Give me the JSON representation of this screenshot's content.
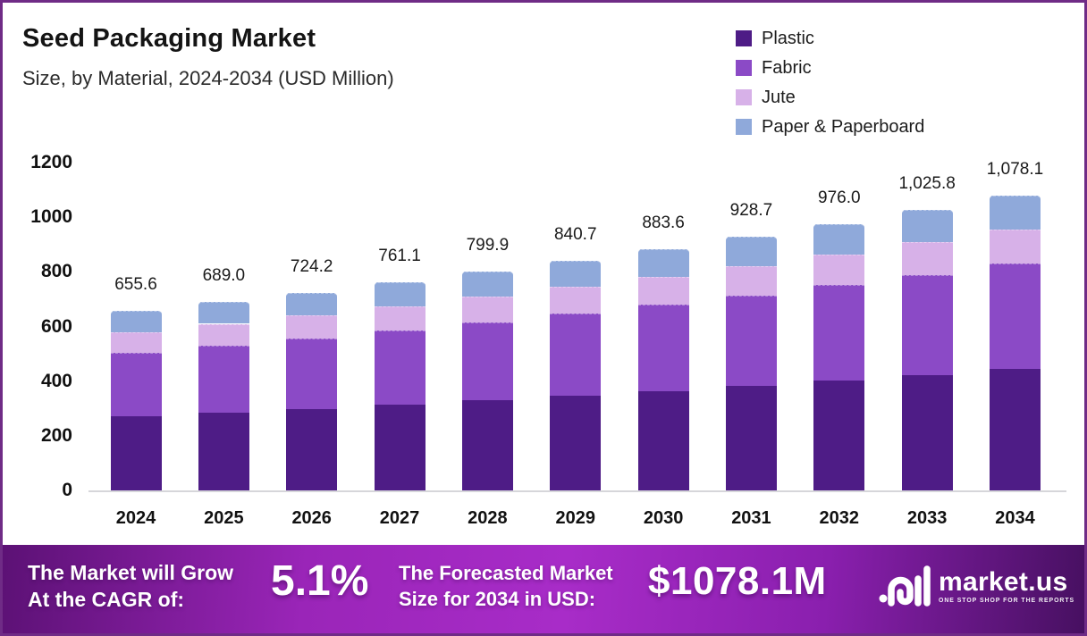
{
  "header": {
    "title": "Seed Packaging Market",
    "subtitle": "Size, by Material, 2024-2034 (USD Million)"
  },
  "chart_data": {
    "type": "bar",
    "stacked": true,
    "title": "Seed Packaging Market Size, by Material, 2024-2034 (USD Million)",
    "xlabel": "",
    "ylabel": "",
    "ylim": [
      0,
      1200
    ],
    "yticks": [
      0,
      200,
      400,
      600,
      800,
      1000,
      1200
    ],
    "grid": false,
    "legend_position": "top-right",
    "categories": [
      "2024",
      "2025",
      "2026",
      "2027",
      "2028",
      "2029",
      "2030",
      "2031",
      "2032",
      "2033",
      "2034"
    ],
    "series": [
      {
        "name": "Plastic",
        "color": "#4e1c86",
        "values": [
          270.1,
          283.9,
          298.4,
          313.6,
          329.6,
          346.4,
          364.0,
          382.6,
          402.1,
          422.6,
          444.2
        ]
      },
      {
        "name": "Fabric",
        "color": "#8b4ac6",
        "values": [
          234.0,
          246.0,
          258.5,
          271.7,
          285.6,
          300.1,
          315.4,
          331.5,
          348.4,
          366.2,
          384.9
        ]
      },
      {
        "name": "Jute",
        "color": "#d7b1e8",
        "values": [
          76.0,
          79.9,
          84.0,
          88.3,
          92.8,
          97.5,
          102.5,
          107.7,
          113.2,
          119.0,
          125.1
        ]
      },
      {
        "name": "Paper & Paperboard",
        "color": "#8fa9da",
        "values": [
          75.5,
          79.2,
          83.3,
          87.5,
          91.9,
          96.7,
          101.7,
          106.9,
          112.3,
          118.0,
          123.9
        ]
      }
    ],
    "totals": [
      655.6,
      689.0,
      724.2,
      761.1,
      799.9,
      840.7,
      883.6,
      928.7,
      976.0,
      1025.8,
      1078.1
    ],
    "total_labels": [
      "655.6",
      "689.0",
      "724.2",
      "761.1",
      "799.9",
      "840.7",
      "883.6",
      "928.7",
      "976.0",
      "1,025.8",
      "1,078.1"
    ]
  },
  "banner": {
    "cagr_label_line1": "The Market will Grow",
    "cagr_label_line2": "At the CAGR of:",
    "cagr_value": "5.1%",
    "forecast_label_line1": "The Forecasted Market",
    "forecast_label_line2": "Size for 2034 in USD:",
    "forecast_value": "$1078.1M",
    "brand_name": "market.us",
    "brand_tagline": "ONE STOP SHOP FOR THE REPORTS"
  }
}
